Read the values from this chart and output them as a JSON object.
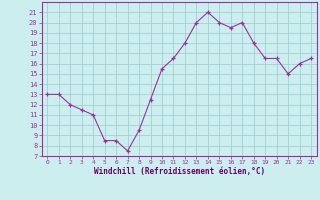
{
  "x": [
    0,
    1,
    2,
    3,
    4,
    5,
    6,
    7,
    8,
    9,
    10,
    11,
    12,
    13,
    14,
    15,
    16,
    17,
    18,
    19,
    20,
    21,
    22,
    23
  ],
  "y": [
    13,
    13,
    12,
    11.5,
    11,
    8.5,
    8.5,
    7.5,
    9.5,
    12.5,
    15.5,
    16.5,
    18,
    20,
    21,
    20,
    19.5,
    20,
    18,
    16.5,
    16.5,
    15,
    16,
    16.5
  ],
  "line_color": "#993399",
  "marker_color": "#993399",
  "bg_color": "#cceeee",
  "grid_color": "#99cccc",
  "xlabel": "Windchill (Refroidissement éolien,°C)",
  "xlabel_color": "#660066",
  "tick_color": "#993399",
  "ylim": [
    7,
    22
  ],
  "xlim": [
    -0.5,
    23.5
  ],
  "yticks": [
    7,
    8,
    9,
    10,
    11,
    12,
    13,
    14,
    15,
    16,
    17,
    18,
    19,
    20,
    21
  ],
  "xticks": [
    0,
    1,
    2,
    3,
    4,
    5,
    6,
    7,
    8,
    9,
    10,
    11,
    12,
    13,
    14,
    15,
    16,
    17,
    18,
    19,
    20,
    21,
    22,
    23
  ],
  "spine_color": "#993399",
  "figsize": [
    3.2,
    2.0
  ],
  "dpi": 100
}
